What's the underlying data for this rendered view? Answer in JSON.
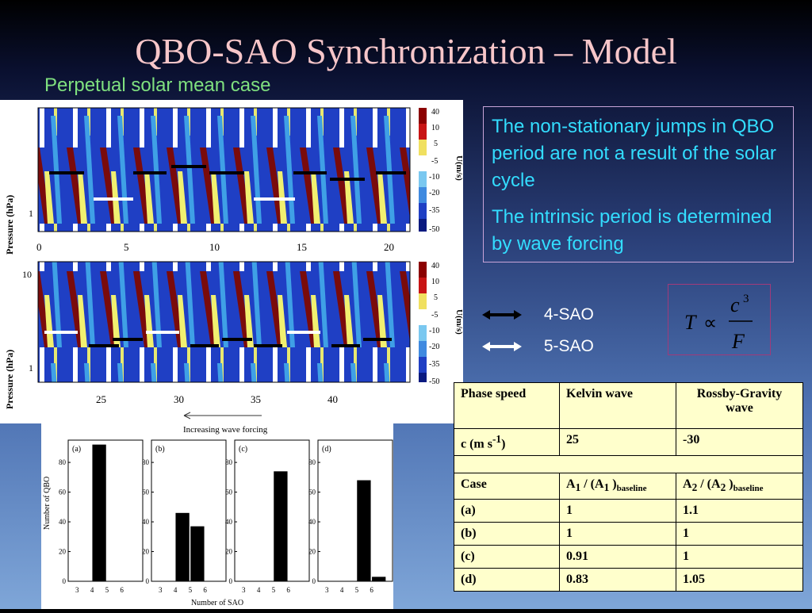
{
  "slide": {
    "title": "QBO-SAO Synchronization – Model",
    "subtitle": "Perpetual solar mean case"
  },
  "info_box": {
    "paragraphs": [
      "The non-stationary jumps in QBO period are not a result of the solar cycle",
      "The intrinsic period is determined by wave forcing"
    ]
  },
  "legend": {
    "four_sao": "4-SAO",
    "five_sao": "5-SAO"
  },
  "formula": {
    "lhs": "T",
    "rel": "∝",
    "num_base": "c",
    "num_exp": "3",
    "den": "F"
  },
  "contour_plots": {
    "ylabel": "Pressure (hPa)",
    "ytick_top": "1",
    "ytick_mid": "10",
    "top_xticks": [
      "0",
      "5",
      "10",
      "15",
      "20"
    ],
    "bottom_xticks": [
      "25",
      "30",
      "35",
      "40"
    ],
    "colorbar_ticks": [
      "40",
      "10",
      "5",
      "-5",
      "-10",
      "-20",
      "-35",
      "-50"
    ],
    "colorbar_label": "U(m/s)",
    "arrow_caption": "Increasing wave forcing"
  },
  "chart_data": [
    {
      "type": "bar",
      "panel": "(a)",
      "categories": [
        "3",
        "4",
        "5",
        "6"
      ],
      "values": [
        0,
        92,
        0,
        0
      ],
      "ylabel": "Number of QBO",
      "xlabel": "Number of SAO",
      "ylim": [
        0,
        95
      ],
      "yticks": [
        "0",
        "20",
        "40",
        "60",
        "80"
      ]
    },
    {
      "type": "bar",
      "panel": "(b)",
      "categories": [
        "3",
        "4",
        "5",
        "6"
      ],
      "values": [
        0,
        46,
        37,
        0
      ],
      "ylim": [
        0,
        95
      ],
      "yticks": [
        "0",
        "20",
        "40",
        "60",
        "80"
      ]
    },
    {
      "type": "bar",
      "panel": "(c)",
      "categories": [
        "3",
        "4",
        "5",
        "6"
      ],
      "values": [
        0,
        0,
        74,
        0
      ],
      "ylim": [
        0,
        95
      ],
      "yticks": [
        "0",
        "20",
        "40",
        "60",
        "80"
      ]
    },
    {
      "type": "bar",
      "panel": "(d)",
      "categories": [
        "3",
        "4",
        "5",
        "6"
      ],
      "values": [
        0,
        0,
        68,
        3
      ],
      "ylim": [
        0,
        95
      ],
      "yticks": [
        "0",
        "20",
        "40",
        "60",
        "80"
      ]
    }
  ],
  "table": {
    "header": [
      "Phase speed",
      "Kelvin wave",
      "Rossby-Gravity wave"
    ],
    "c_row": {
      "label": "c (m s",
      "label_sup": "-1",
      "label_end": ")",
      "kelvin": "25",
      "rossby": "-30"
    },
    "case_header": {
      "c0": "Case",
      "a1": "A",
      "s1": "1",
      "mid1": " / (A",
      "s1b": "1",
      "end1": " )",
      "sub1": "baseline",
      "a2": "A",
      "s2": "2",
      "mid2": " / (A",
      "s2b": "2",
      "end2": " )",
      "sub2": "baseline"
    },
    "cases": [
      {
        "case": "(a)",
        "a1": "1",
        "a2": "1.1"
      },
      {
        "case": "(b)",
        "a1": "1",
        "a2": "1"
      },
      {
        "case": "(c)",
        "a1": "0.91",
        "a2": "1"
      },
      {
        "case": "(d)",
        "a1": "0.83",
        "a2": "1.05"
      }
    ]
  },
  "colors": {
    "title": "#f7c6c9",
    "subtitle": "#7fe07f",
    "info_text": "#33ddff",
    "contour_deep": "#1f3fc4",
    "contour_light": "#3fa0e6",
    "easterly_dark": "#7a0b0b",
    "table_bg": "#ffffcc"
  }
}
